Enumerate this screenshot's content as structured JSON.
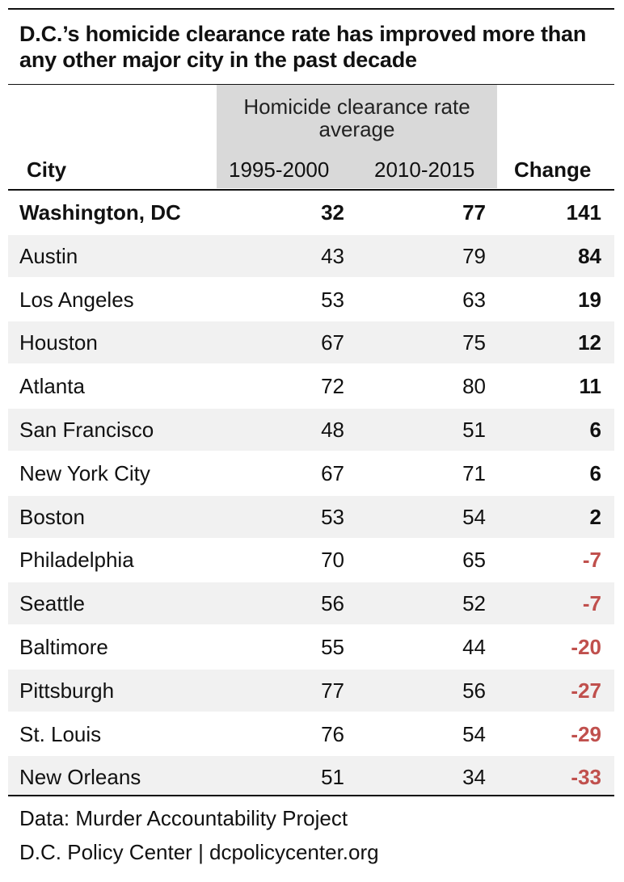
{
  "title": "D.C.’s homicide clearance rate has improved more than any other major city in the past decade",
  "chart_data": {
    "type": "table",
    "group_header": "Homicide clearance rate average",
    "columns": [
      "City",
      "1995-2000",
      "2010-2015",
      "Change"
    ],
    "rows": [
      {
        "city": "Washington, DC",
        "v1995_2000": "32",
        "v2010_2015": "77",
        "change": "141"
      },
      {
        "city": "Austin",
        "v1995_2000": "43",
        "v2010_2015": "79",
        "change": "84"
      },
      {
        "city": "Los Angeles",
        "v1995_2000": "53",
        "v2010_2015": "63",
        "change": "19"
      },
      {
        "city": "Houston",
        "v1995_2000": "67",
        "v2010_2015": "75",
        "change": "12"
      },
      {
        "city": "Atlanta",
        "v1995_2000": "72",
        "v2010_2015": "80",
        "change": "11"
      },
      {
        "city": "San Francisco",
        "v1995_2000": "48",
        "v2010_2015": "51",
        "change": "6"
      },
      {
        "city": "New York City",
        "v1995_2000": "67",
        "v2010_2015": "71",
        "change": "6"
      },
      {
        "city": "Boston",
        "v1995_2000": "53",
        "v2010_2015": "54",
        "change": "2"
      },
      {
        "city": "Philadelphia",
        "v1995_2000": "70",
        "v2010_2015": "65",
        "change": "-7"
      },
      {
        "city": "Seattle",
        "v1995_2000": "56",
        "v2010_2015": "52",
        "change": "-7"
      },
      {
        "city": "Baltimore",
        "v1995_2000": "55",
        "v2010_2015": "44",
        "change": "-20"
      },
      {
        "city": "Pittsburgh",
        "v1995_2000": "77",
        "v2010_2015": "56",
        "change": "-27"
      },
      {
        "city": "St. Louis",
        "v1995_2000": "76",
        "v2010_2015": "54",
        "change": "-29"
      },
      {
        "city": "New Orleans",
        "v1995_2000": "51",
        "v2010_2015": "34",
        "change": "-33"
      }
    ],
    "highlight_row": "Washington, DC",
    "shaded_row_color": "#f1f1f1",
    "header_block_color": "#d9d9d9",
    "positive_change_color": "#111111",
    "negative_change_color": "#c0504d"
  },
  "footer": {
    "source": "Data: Murder Accountability Project",
    "credit": "D.C. Policy Center | dcpolicycenter.org"
  }
}
